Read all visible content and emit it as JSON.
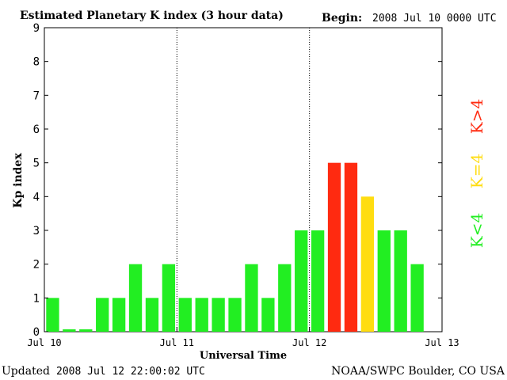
{
  "header": {
    "title": "Estimated Planetary K index (3 hour data)",
    "begin_label": "Begin:",
    "begin_value": "2008 Jul 10 0000 UTC"
  },
  "footer": {
    "updated_label": "Updated",
    "updated_value": "2008 Jul 12 22:00:02 UTC",
    "credit": "NOAA/SWPC Boulder, CO USA"
  },
  "legend": {
    "low": "K<4",
    "mid": "K=4",
    "high": "K>4"
  },
  "colors": {
    "low": "#22ee22",
    "mid": "#ffdd11",
    "high": "#ff2a10",
    "axis": "#000000"
  },
  "chart_data": {
    "type": "bar",
    "title": "Estimated Planetary K index (3 hour data)",
    "xlabel": "Universal Time",
    "ylabel": "Kp index",
    "ylim": [
      0,
      9
    ],
    "yticks": [
      "0",
      "1",
      "2",
      "3",
      "4",
      "5",
      "6",
      "7",
      "8",
      "9"
    ],
    "xticks": [
      "Jul 10",
      "Jul 11",
      "Jul 12",
      "Jul 13"
    ],
    "interval_hours": 3,
    "day_separators": "dotted",
    "values": [
      1,
      0,
      0,
      1,
      1,
      2,
      1,
      2,
      1,
      1,
      1,
      1,
      2,
      1,
      2,
      3,
      3,
      5,
      5,
      4,
      3,
      3,
      2
    ],
    "color_rule": "green below 4, yellow at 4, red above 4"
  }
}
